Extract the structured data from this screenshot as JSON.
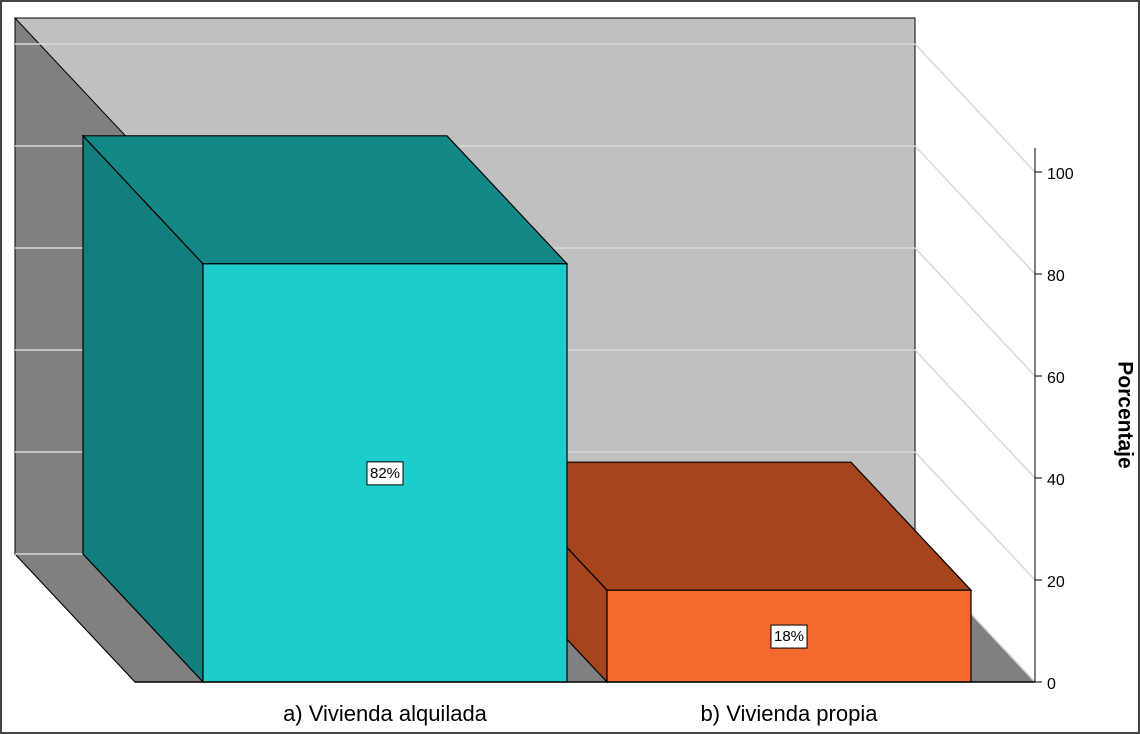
{
  "chart_data": {
    "type": "bar3d",
    "y_label": "Porcentaje",
    "categories": [
      "a) Vivienda alquilada",
      "b) Vivienda propia"
    ],
    "values": [
      82,
      18
    ],
    "value_labels": [
      "82%",
      "18%"
    ],
    "colors": [
      {
        "front": "#1ccdcc",
        "top": "#138887",
        "side": "#127e7d"
      },
      {
        "front": "#f26a2d",
        "top": "#a6441b",
        "side": "#a6441b"
      }
    ],
    "ylim": [
      0,
      100
    ],
    "yticks": [
      0,
      20,
      40,
      60,
      80,
      100
    ],
    "grid": true
  }
}
